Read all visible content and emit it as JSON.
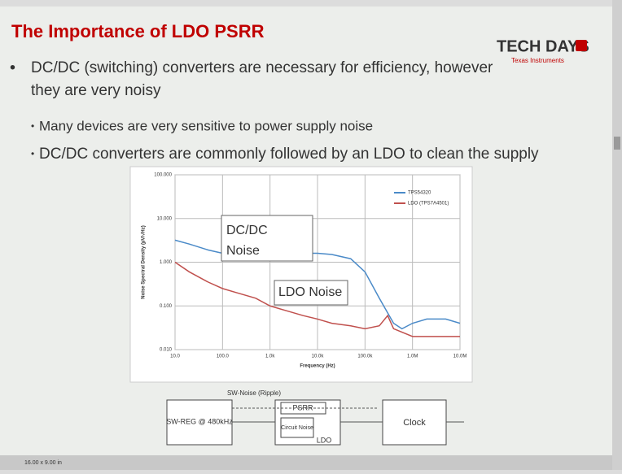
{
  "slide": {
    "title": "The Importance of LDO PSRR",
    "logo": "TECH DAYS",
    "logo_sub": "Texas Instruments",
    "bullets": [
      "DC/DC (switching) converters are necessary for efficiency, however they are very noisy",
      "Many devices are very sensitive to power supply noise",
      "DC/DC converters are commonly followed by an LDO to clean the supply"
    ],
    "status": "16.00 x 9.00 in"
  },
  "chart_data": {
    "type": "line",
    "xlabel": "Frequency (Hz)",
    "ylabel": "Noise Spectral Density (µV/√Hz)",
    "xlog": true,
    "ylog": true,
    "grid": true,
    "legend": "upper right",
    "xlim": [
      10,
      10000000
    ],
    "ylim": [
      0.01,
      100
    ],
    "xticks": [
      {
        "value": 10,
        "label": "10.0"
      },
      {
        "value": 100,
        "label": "100.0"
      },
      {
        "value": 1000,
        "label": "1.0k"
      },
      {
        "value": 10000,
        "label": "10.0k"
      },
      {
        "value": 100000,
        "label": "100.0k"
      },
      {
        "value": 1000000,
        "label": "1.0M"
      },
      {
        "value": 10000000,
        "label": "10.0M"
      }
    ],
    "yticks": [
      {
        "value": 100,
        "label": "100.000"
      },
      {
        "value": 10,
        "label": "10.000"
      },
      {
        "value": 1,
        "label": "1.000"
      },
      {
        "value": 0.1,
        "label": "0.100"
      },
      {
        "value": 0.01,
        "label": "0.010"
      }
    ],
    "series": [
      {
        "name": "TPS54320",
        "color": "#4a8ac8",
        "x": [
          10,
          20,
          50,
          100,
          200,
          500,
          1000,
          2000,
          5000,
          10000,
          20000,
          50000,
          100000,
          200000,
          400000,
          600000,
          1000000,
          2000000,
          5000000,
          10000000
        ],
        "values": [
          3.2,
          2.6,
          1.9,
          1.6,
          1.5,
          1.3,
          1.4,
          1.5,
          1.6,
          1.6,
          1.5,
          1.2,
          0.6,
          0.15,
          0.04,
          0.03,
          0.04,
          0.05,
          0.05,
          0.04
        ]
      },
      {
        "name": "LDO (TPS7A4501)",
        "color": "#c0504d",
        "x": [
          10,
          20,
          50,
          100,
          200,
          500,
          1000,
          2000,
          5000,
          10000,
          20000,
          50000,
          100000,
          200000,
          300000,
          400000,
          1000000,
          10000000
        ],
        "values": [
          1.0,
          0.6,
          0.35,
          0.25,
          0.2,
          0.15,
          0.1,
          0.08,
          0.06,
          0.05,
          0.04,
          0.035,
          0.03,
          0.035,
          0.06,
          0.03,
          0.02,
          0.02
        ]
      }
    ],
    "annotations": [
      "DC/DC Noise",
      "LDO Noise"
    ]
  },
  "diagram": {
    "sw_noise": "SW-Noise (Ripple)",
    "swreg": "SW-REG @ 480kHz",
    "psrr": "PSRR",
    "circuit_noise": "Circuit Noise",
    "ldo": "LDO",
    "clock": "Clock"
  }
}
